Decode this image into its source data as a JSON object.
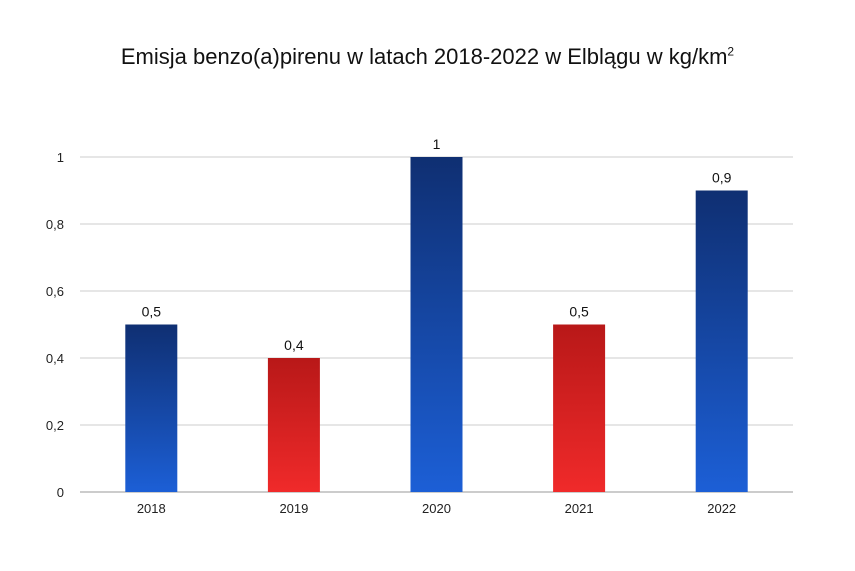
{
  "title": {
    "text": "Emisja benzo(a)pirenu w latach 2018-2022 w Elblągu w kg/km",
    "superscript": "2"
  },
  "chart_data": {
    "type": "bar",
    "title": "Emisja benzo(a)pirenu w latach 2018-2022 w Elblągu w kg/km²",
    "categories": [
      "2018",
      "2019",
      "2020",
      "2021",
      "2022"
    ],
    "values": [
      0.5,
      0.4,
      1,
      0.5,
      0.9
    ],
    "data_labels": [
      "0,5",
      "0,4",
      "1",
      "0,5",
      "0,9"
    ],
    "bar_colors": [
      "blue",
      "red",
      "blue",
      "red",
      "blue"
    ],
    "y_ticks": [
      0,
      0.2,
      0.4,
      0.6,
      0.8,
      1
    ],
    "y_tick_labels": [
      "0",
      "0,2",
      "0,4",
      "0,6",
      "0,8",
      "1"
    ],
    "ylim": [
      0,
      1
    ],
    "grid": true,
    "legend": "none",
    "xlabel": "",
    "ylabel": ""
  },
  "colors": {
    "blue_top": "#0f2f72",
    "blue_bottom": "#1c5fd6",
    "red_top": "#b81818",
    "red_bottom": "#f02a2a",
    "grid": "#cccccc",
    "axis": "#999999"
  }
}
